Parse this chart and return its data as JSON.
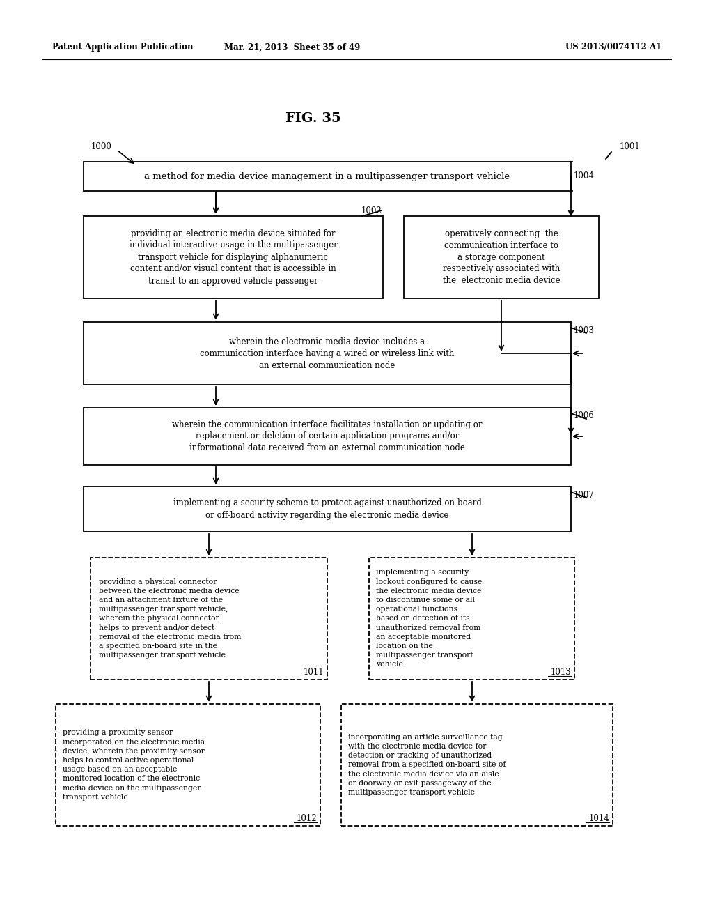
{
  "background_color": "#ffffff",
  "header_left": "Patent Application Publication",
  "header_center": "Mar. 21, 2013  Sheet 35 of 49",
  "header_right": "US 2013/0074112 A1",
  "fig_title": "FIG. 35",
  "label_1000": "1000",
  "label_1001_ref": "1001",
  "boxes": [
    {
      "id": "main",
      "text": "a method for media device management in a multipassenger transport vehicle",
      "style": "solid",
      "fontsize": 9.5,
      "label": "1004",
      "label_side": "right"
    },
    {
      "id": "box1002",
      "text": "providing an electronic media device situated for\nindividual interactive usage in the multipassenger\ntransport vehicle for displaying alphanumeric\ncontent and/or visual content that is accessible in\ntransit to an approved vehicle passenger",
      "style": "solid",
      "fontsize": 8.5,
      "label": "1002",
      "label_side": "top_right"
    },
    {
      "id": "box1001",
      "text": "operatively connecting  the\ncommunication interface to\na storage component\nrespectively associated with\nthe  electronic media device",
      "style": "solid",
      "fontsize": 8.5,
      "label": "1001",
      "label_side": "top_right"
    },
    {
      "id": "box1003",
      "text": "wherein the electronic media device includes a\ncommunication interface having a wired or wireless link with\nan external communication node",
      "style": "solid",
      "fontsize": 8.5,
      "label": "1003",
      "label_side": "right"
    },
    {
      "id": "box1006",
      "text": "wherein the communication interface facilitates installation or updating or\nreplacement or deletion of certain application programs and/or\ninformational data received from an external communication node",
      "style": "solid",
      "fontsize": 8.5,
      "label": "1006",
      "label_side": "right"
    },
    {
      "id": "box1007",
      "text": "implementing a security scheme to protect against unauthorized on-board\nor off-board activity regarding the electronic media device",
      "style": "solid",
      "fontsize": 8.5,
      "label": "1007",
      "label_side": "right"
    },
    {
      "id": "box1011",
      "text": "providing a physical connector\nbetween the electronic media device\nand an attachment fixture of the\nmultipassenger transport vehicle,\nwherein the physical connector\nhelps to prevent and/or detect\nremoval of the electronic media from\na specified on-board site in the\nmultipassenger transport vehicle",
      "style": "dashed",
      "fontsize": 7.8,
      "label": "1011",
      "label_side": "bottom_right_inside"
    },
    {
      "id": "box1013",
      "text": "implementing a security\nlockout configured to cause\nthe electronic media device\nto discontinue some or all\noperational functions\nbased on detection of its\nunauthorized removal from\nan acceptable monitored\nlocation on the\nmultipassenger transport\nvehicle",
      "style": "dashed",
      "fontsize": 7.8,
      "label": "1013",
      "label_side": "bottom_right_inside"
    },
    {
      "id": "box1012",
      "text": "providing a proximity sensor\nincorporated on the electronic media\ndevice, wherein the proximity sensor\nhelps to control active operational\nusage based on an acceptable\nmonitored location of the electronic\nmedia device on the multipassenger\ntransport vehicle",
      "style": "dashed",
      "fontsize": 7.8,
      "label": "1012",
      "label_side": "bottom_right_inside"
    },
    {
      "id": "box1014",
      "text": "incorporating an article surveillance tag\nwith the electronic media device for\ndetection or tracking of unauthorized\nremoval from a specified on-board site of\nthe electronic media device via an aisle\nor doorway or exit passageway of the\nmultipassenger transport vehicle",
      "style": "dashed",
      "fontsize": 7.8,
      "label": "1014",
      "label_side": "bottom_right_inside"
    }
  ]
}
